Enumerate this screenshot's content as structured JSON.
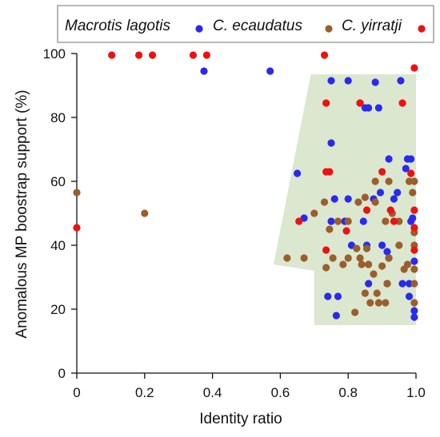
{
  "chart_data": {
    "type": "scatter",
    "title": "",
    "xlabel": "Identity ratio",
    "ylabel": "Anomalous MP boostrap support (%)",
    "xlim": [
      0,
      1.0
    ],
    "ylim": [
      0,
      100
    ],
    "xticks": [
      "0",
      "0.2",
      "0.4",
      "0.6",
      "0.8",
      "1.0"
    ],
    "xtick_values": [
      0,
      0.2,
      0.4,
      0.6,
      0.8,
      1.0
    ],
    "yticks": [
      "0",
      "20",
      "40",
      "60",
      "80",
      "100"
    ],
    "ytick_values": [
      0,
      20,
      40,
      60,
      80,
      100
    ],
    "grid": false,
    "legend_position": "top",
    "shaded_region": {
      "color": "#dbe8cf",
      "polygon": [
        [
          0.69,
          93.5
        ],
        [
          1.0,
          93.5
        ],
        [
          1.0,
          15
        ],
        [
          0.7,
          15
        ],
        [
          0.7,
          32
        ],
        [
          0.58,
          34
        ]
      ]
    },
    "series": [
      {
        "name": "Macrotis lagotis",
        "color": "#2a2aee",
        "points": [
          [
            0.375,
            94.5
          ],
          [
            0.57,
            94.5
          ],
          [
            0.65,
            62.5
          ],
          [
            0.67,
            48.5
          ],
          [
            0.75,
            91.5
          ],
          [
            0.75,
            72
          ],
          [
            0.75,
            47.5
          ],
          [
            0.74,
            24
          ],
          [
            0.76,
            54.5
          ],
          [
            0.77,
            24
          ],
          [
            0.765,
            18
          ],
          [
            0.8,
            91.5
          ],
          [
            0.79,
            47.5
          ],
          [
            0.8,
            54.5
          ],
          [
            0.81,
            40
          ],
          [
            0.835,
            84.5
          ],
          [
            0.85,
            83
          ],
          [
            0.86,
            83
          ],
          [
            0.845,
            47.5
          ],
          [
            0.855,
            40
          ],
          [
            0.86,
            28
          ],
          [
            0.88,
            91
          ],
          [
            0.875,
            54.5
          ],
          [
            0.89,
            83
          ],
          [
            0.895,
            56.5
          ],
          [
            0.9,
            40
          ],
          [
            0.915,
            38
          ],
          [
            0.92,
            36
          ],
          [
            0.92,
            67
          ],
          [
            0.915,
            28
          ],
          [
            0.935,
            54.5
          ],
          [
            0.945,
            56.5
          ],
          [
            0.955,
            91.5
          ],
          [
            0.96,
            28
          ],
          [
            0.97,
            64
          ],
          [
            0.975,
            67
          ],
          [
            0.985,
            67
          ],
          [
            0.985,
            47.5
          ],
          [
            0.98,
            28
          ],
          [
            0.98,
            24
          ],
          [
            0.99,
            48.5
          ],
          [
            0.995,
            35
          ],
          [
            0.995,
            19.5
          ],
          [
            0.995,
            17.5
          ]
        ]
      },
      {
        "name": "C. ecaudatus",
        "color": "#9b5e2c",
        "points": [
          [
            0,
            56.5
          ],
          [
            0.2,
            50
          ],
          [
            0.62,
            36
          ],
          [
            0.67,
            36
          ],
          [
            0.7,
            50
          ],
          [
            0.73,
            53.5
          ],
          [
            0.735,
            33
          ],
          [
            0.745,
            45
          ],
          [
            0.755,
            36
          ],
          [
            0.77,
            47.5
          ],
          [
            0.785,
            34
          ],
          [
            0.8,
            47.5
          ],
          [
            0.8,
            36
          ],
          [
            0.82,
            19
          ],
          [
            0.825,
            39
          ],
          [
            0.83,
            53.5
          ],
          [
            0.835,
            36
          ],
          [
            0.84,
            34
          ],
          [
            0.85,
            25
          ],
          [
            0.85,
            55
          ],
          [
            0.855,
            39
          ],
          [
            0.86,
            34
          ],
          [
            0.865,
            22
          ],
          [
            0.875,
            31
          ],
          [
            0.88,
            60
          ],
          [
            0.88,
            53.5
          ],
          [
            0.885,
            25
          ],
          [
            0.89,
            22
          ],
          [
            0.9,
            33.5
          ],
          [
            0.91,
            22
          ],
          [
            0.91,
            47.5
          ],
          [
            0.915,
            28
          ],
          [
            0.92,
            60
          ],
          [
            0.92,
            36
          ],
          [
            0.93,
            50
          ],
          [
            0.95,
            47.5
          ],
          [
            0.95,
            40
          ],
          [
            0.965,
            32.5
          ],
          [
            0.975,
            34
          ],
          [
            0.98,
            60
          ],
          [
            0.99,
            56.5
          ],
          [
            0.995,
            60
          ],
          [
            0.995,
            44
          ],
          [
            0.995,
            40
          ],
          [
            0.995,
            32.5
          ],
          [
            0.995,
            28
          ],
          [
            0.995,
            22
          ]
        ]
      },
      {
        "name": "C. yirratji",
        "color": "#ee1111",
        "points": [
          [
            0,
            45.5
          ],
          [
            0.103,
            99.5
          ],
          [
            0.183,
            99.5
          ],
          [
            0.223,
            99.5
          ],
          [
            0.343,
            99.5
          ],
          [
            0.383,
            99.5
          ],
          [
            0.73,
            99.5
          ],
          [
            0.735,
            84.5
          ],
          [
            0.735,
            63
          ],
          [
            0.745,
            63
          ],
          [
            0.735,
            38.5
          ],
          [
            0.655,
            47.5
          ],
          [
            0.795,
            44.5
          ],
          [
            0.835,
            84.5
          ],
          [
            0.855,
            51
          ],
          [
            0.9,
            63
          ],
          [
            0.925,
            51
          ],
          [
            0.935,
            47.5
          ],
          [
            0.96,
            84.5
          ],
          [
            0.985,
            62.5
          ],
          [
            0.995,
            95.5
          ],
          [
            0.995,
            51
          ],
          [
            0.995,
            45.5
          ],
          [
            0.995,
            38.5
          ]
        ]
      }
    ]
  }
}
